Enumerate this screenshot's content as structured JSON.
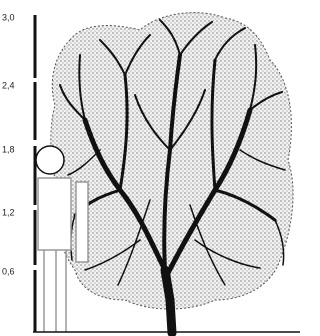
{
  "scale": {
    "labels": [
      "3,0",
      "2,4",
      "1,8",
      "1,2",
      "0,6"
    ]
  }
}
